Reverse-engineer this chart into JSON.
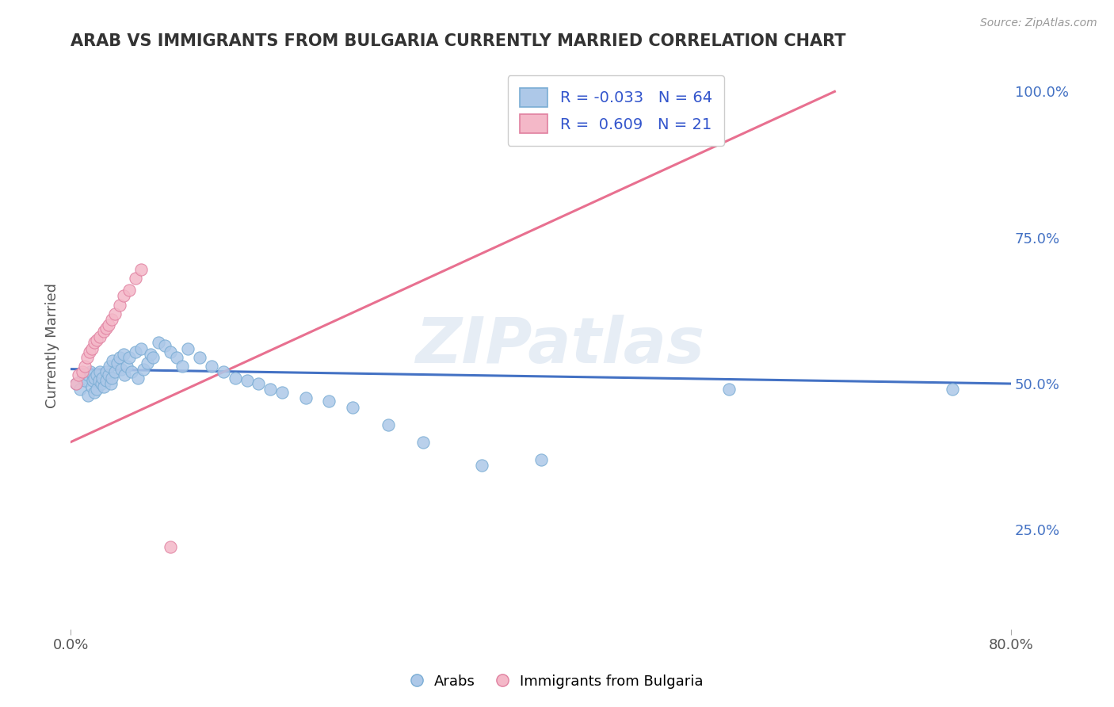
{
  "title": "ARAB VS IMMIGRANTS FROM BULGARIA CURRENTLY MARRIED CORRELATION CHART",
  "source": "Source: ZipAtlas.com",
  "ylabel_left": "Currently Married",
  "x_min": 0.0,
  "x_max": 0.8,
  "y_min": 0.08,
  "y_max": 1.05,
  "right_yticks": [
    0.25,
    0.5,
    0.75,
    1.0
  ],
  "right_yticklabels": [
    "25.0%",
    "50.0%",
    "75.0%",
    "100.0%"
  ],
  "watermark": "ZIPatlas",
  "arab_color": "#adc8e8",
  "arab_edge_color": "#7aadd4",
  "bulg_color": "#f4b8c8",
  "bulg_edge_color": "#e080a0",
  "trend_arab_color": "#4472c4",
  "trend_bulg_color": "#e87090",
  "R_arab": -0.033,
  "N_arab": 64,
  "R_bulg": 0.609,
  "N_bulg": 21,
  "legend_label_arab": "Arabs",
  "legend_label_bulg": "Immigrants from Bulgaria",
  "arab_scatter_x": [
    0.005,
    0.008,
    0.01,
    0.012,
    0.015,
    0.015,
    0.017,
    0.018,
    0.019,
    0.02,
    0.02,
    0.022,
    0.022,
    0.024,
    0.025,
    0.026,
    0.027,
    0.028,
    0.03,
    0.03,
    0.032,
    0.033,
    0.034,
    0.035,
    0.036,
    0.038,
    0.04,
    0.042,
    0.043,
    0.045,
    0.046,
    0.048,
    0.05,
    0.052,
    0.055,
    0.057,
    0.06,
    0.062,
    0.065,
    0.068,
    0.07,
    0.075,
    0.08,
    0.085,
    0.09,
    0.095,
    0.1,
    0.11,
    0.12,
    0.13,
    0.14,
    0.15,
    0.16,
    0.17,
    0.18,
    0.2,
    0.22,
    0.24,
    0.27,
    0.3,
    0.35,
    0.4,
    0.56,
    0.75
  ],
  "arab_scatter_y": [
    0.5,
    0.49,
    0.51,
    0.505,
    0.515,
    0.48,
    0.52,
    0.495,
    0.505,
    0.51,
    0.485,
    0.515,
    0.49,
    0.505,
    0.52,
    0.5,
    0.51,
    0.495,
    0.52,
    0.505,
    0.515,
    0.53,
    0.5,
    0.51,
    0.54,
    0.52,
    0.535,
    0.545,
    0.525,
    0.55,
    0.515,
    0.53,
    0.545,
    0.52,
    0.555,
    0.51,
    0.56,
    0.525,
    0.535,
    0.55,
    0.545,
    0.57,
    0.565,
    0.555,
    0.545,
    0.53,
    0.56,
    0.545,
    0.53,
    0.52,
    0.51,
    0.505,
    0.5,
    0.49,
    0.485,
    0.475,
    0.47,
    0.46,
    0.43,
    0.4,
    0.36,
    0.37,
    0.49,
    0.49
  ],
  "bulg_scatter_x": [
    0.005,
    0.007,
    0.01,
    0.012,
    0.014,
    0.016,
    0.018,
    0.02,
    0.022,
    0.025,
    0.028,
    0.03,
    0.032,
    0.035,
    0.038,
    0.042,
    0.045,
    0.05,
    0.055,
    0.06,
    0.085
  ],
  "bulg_scatter_y": [
    0.5,
    0.515,
    0.52,
    0.53,
    0.545,
    0.555,
    0.56,
    0.57,
    0.575,
    0.58,
    0.59,
    0.595,
    0.6,
    0.61,
    0.62,
    0.635,
    0.65,
    0.66,
    0.68,
    0.695,
    0.22
  ],
  "background_color": "#ffffff",
  "grid_color": "#c8c8c8",
  "title_color": "#333333",
  "axis_label_color": "#555555",
  "tick_label_color": "#555555",
  "right_tick_color": "#4472c4",
  "legend_text_color": "#3355cc"
}
